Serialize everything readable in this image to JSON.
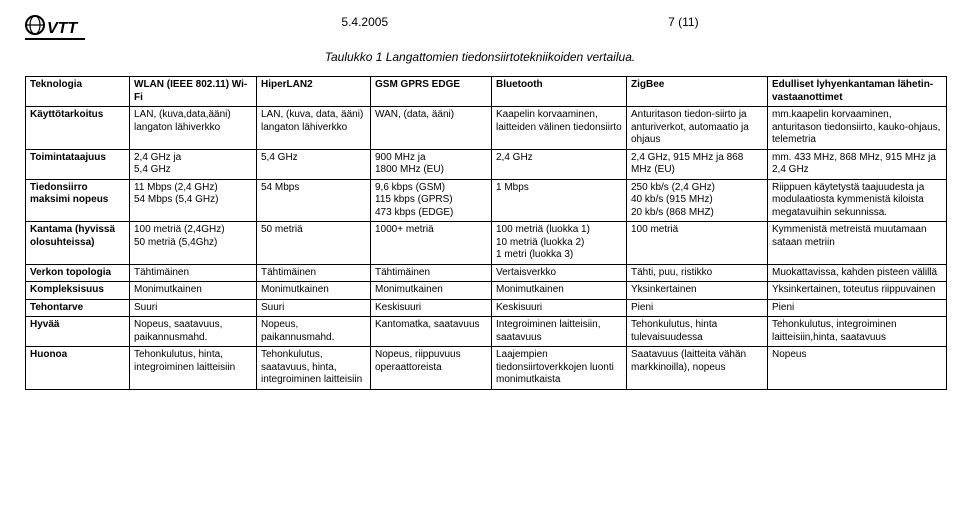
{
  "header": {
    "date": "5.4.2005",
    "page": "7 (11)"
  },
  "caption": "Taulukko 1 Langattomien tiedonsiirtotekniikoiden vertailua.",
  "table": {
    "columns": [
      "Teknologia",
      "WLAN (IEEE 802.11) Wi-Fi",
      "HiperLAN2",
      "GSM\nGPRS\nEDGE",
      "Bluetooth",
      "ZigBee",
      "Edulliset lyhyenkantaman lähetin-vastaanottimet"
    ],
    "rows": [
      {
        "label": "Käyttötarkoitus",
        "c": [
          "LAN, (kuva,data,ääni) langaton lähiverkko",
          "LAN, (kuva, data, ääni) langaton lähiverkko",
          "WAN, (data, ääni)",
          "Kaapelin korvaaminen, laitteiden välinen tiedonsiirto",
          "Anturitason tiedon-siirto ja anturiverkot, automaatio ja ohjaus",
          "mm.kaapelin korvaaminen, anturitason tiedonsiirto, kauko-ohjaus, telemetria"
        ]
      },
      {
        "label": "Toimintataajuus",
        "c": [
          "2,4 GHz ja\n5,4 GHz",
          "5,4 GHz",
          "900 MHz ja\n1800 MHz (EU)",
          "2,4 GHz",
          "2,4 GHz, 915 MHz ja 868 MHz (EU)",
          "mm. 433 MHz, 868 MHz, 915 MHz ja 2,4 GHz"
        ]
      },
      {
        "label": "Tiedonsiirro maksimi nopeus",
        "c": [
          "11 Mbps (2,4 GHz)\n54 Mbps (5,4 GHz)",
          "54 Mbps",
          "9,6 kbps (GSM)\n115 kbps (GPRS)\n473 kbps (EDGE)",
          "1 Mbps",
          "250 kb/s (2,4 GHz)\n40 kb/s  (915 MHz)\n20 kb/s (868 MHZ)",
          "Riippuen käytetystä taajuudesta ja modulaatiosta kymmenistä kiloista megatavuihin sekunnissa."
        ]
      },
      {
        "label": "Kantama (hyvissä olosuhteissa)",
        "c": [
          "100 metriä (2,4GHz)\n50 metriä (5,4Ghz)",
          "50 metriä",
          "1000+ metriä",
          "100 metriä (luokka 1)\n10 metriä (luokka 2)\n1 metri (luokka 3)",
          "100 metriä",
          "Kymmenistä metreistä muutamaan sataan metriin"
        ]
      },
      {
        "label": "Verkon topologia",
        "c": [
          "Tähtimäinen",
          "Tähtimäinen",
          "Tähtimäinen",
          "Vertaisverkko",
          "Tähti, puu, ristikko",
          "Muokattavissa, kahden pisteen välillä"
        ]
      },
      {
        "label": "Kompleksisuus",
        "c": [
          "Monimutkainen",
          "Monimutkainen",
          "Monimutkainen",
          "Monimutkainen",
          "Yksinkertainen",
          "Yksinkertainen, toteutus riippuvainen"
        ]
      },
      {
        "label": "Tehontarve",
        "c": [
          "Suuri",
          "Suuri",
          "Keskisuuri",
          "Keskisuuri",
          "Pieni",
          "Pieni"
        ]
      },
      {
        "label": "Hyvää",
        "c": [
          "Nopeus, saatavuus, paikannusmahd.",
          "Nopeus, paikannusmahd.",
          "Kantomatka, saatavuus",
          "Integroiminen laitteisiin, saatavuus",
          "Tehonkulutus, hinta tulevaisuudessa",
          "Tehonkulutus, integroiminen laitteisiin,hinta, saatavuus"
        ]
      },
      {
        "label": "Huonoa",
        "c": [
          "Tehonkulutus, hinta, integroiminen laitteisiin",
          "Tehonkulutus, saatavuus, hinta, integroiminen laitteisiin",
          "Nopeus, riippuvuus operaattoreista",
          "Laajempien tiedonsiirtoverkkojen luonti monimutkaista",
          "Saatavuus (laitteita vähän markkinoilla), nopeus",
          "Nopeus"
        ]
      }
    ]
  }
}
